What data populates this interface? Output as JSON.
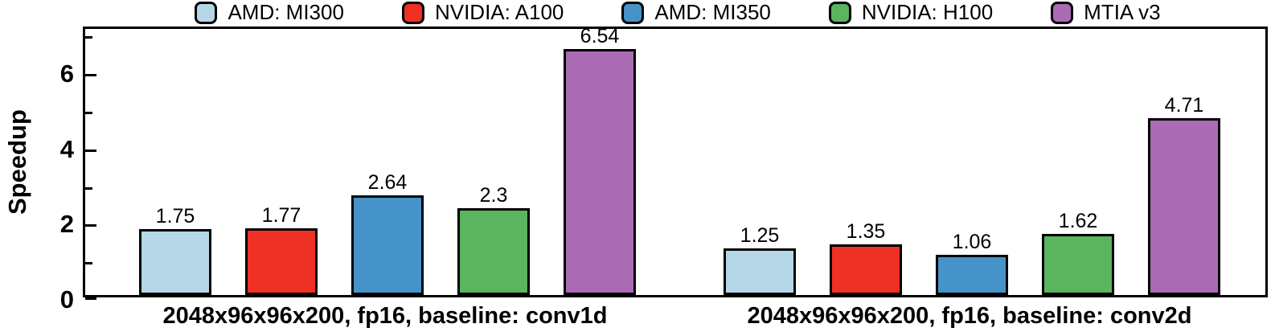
{
  "legend": {
    "items": [
      {
        "label": "AMD: MI300",
        "color": "#b5d7e8"
      },
      {
        "label": "NVIDIA: A100",
        "color": "#ee3124"
      },
      {
        "label": "AMD: MI350",
        "color": "#4593c8"
      },
      {
        "label": "NVIDIA: H100",
        "color": "#5ab55e"
      },
      {
        "label": "MTIA v3",
        "color": "#aa6bb4"
      }
    ]
  },
  "chart_data": {
    "type": "bar",
    "title": "",
    "xlabel": "",
    "ylabel": "Speedup",
    "ylim": [
      0,
      7.2
    ],
    "y_ticks": [
      0,
      2,
      4,
      6
    ],
    "y_minor_ticks": [
      1,
      3,
      5,
      7
    ],
    "grid": false,
    "legend_position": "top",
    "series": [
      "AMD: MI300",
      "NVIDIA: A100",
      "AMD: MI350",
      "NVIDIA: H100",
      "MTIA v3"
    ],
    "colors": [
      "#b5d7e8",
      "#ee3124",
      "#4593c8",
      "#5ab55e",
      "#aa6bb4"
    ],
    "groups": [
      {
        "label": "2048x96x96x200, fp16, baseline: conv1d",
        "values": [
          1.75,
          1.77,
          2.64,
          2.3,
          6.54
        ]
      },
      {
        "label": "2048x96x96x200, fp16, baseline: conv2d",
        "values": [
          1.25,
          1.35,
          1.06,
          1.62,
          4.71
        ]
      }
    ]
  }
}
